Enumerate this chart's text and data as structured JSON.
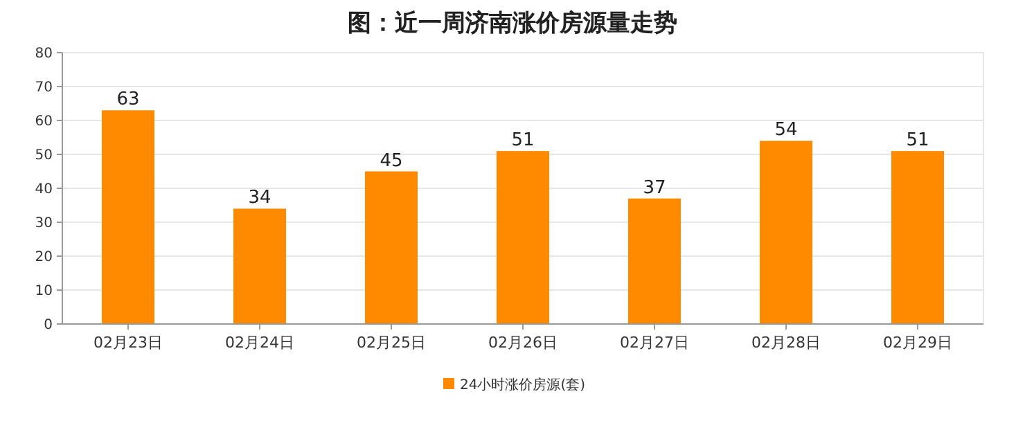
{
  "chart_data": {
    "type": "bar",
    "title": "图：近一周济南涨价房源量走势",
    "categories": [
      "02月23日",
      "02月24日",
      "02月25日",
      "02月26日",
      "02月27日",
      "02月28日",
      "02月29日"
    ],
    "series": [
      {
        "name": "24小时涨价房源(套)",
        "color": "#ff8a00",
        "values": [
          63,
          34,
          45,
          51,
          37,
          54,
          51
        ]
      }
    ],
    "ylim": [
      0,
      80
    ],
    "yticks": [
      0,
      10,
      20,
      30,
      40,
      50,
      60,
      70,
      80
    ],
    "grid": "y",
    "legend": "bottom",
    "data_labels": true
  }
}
